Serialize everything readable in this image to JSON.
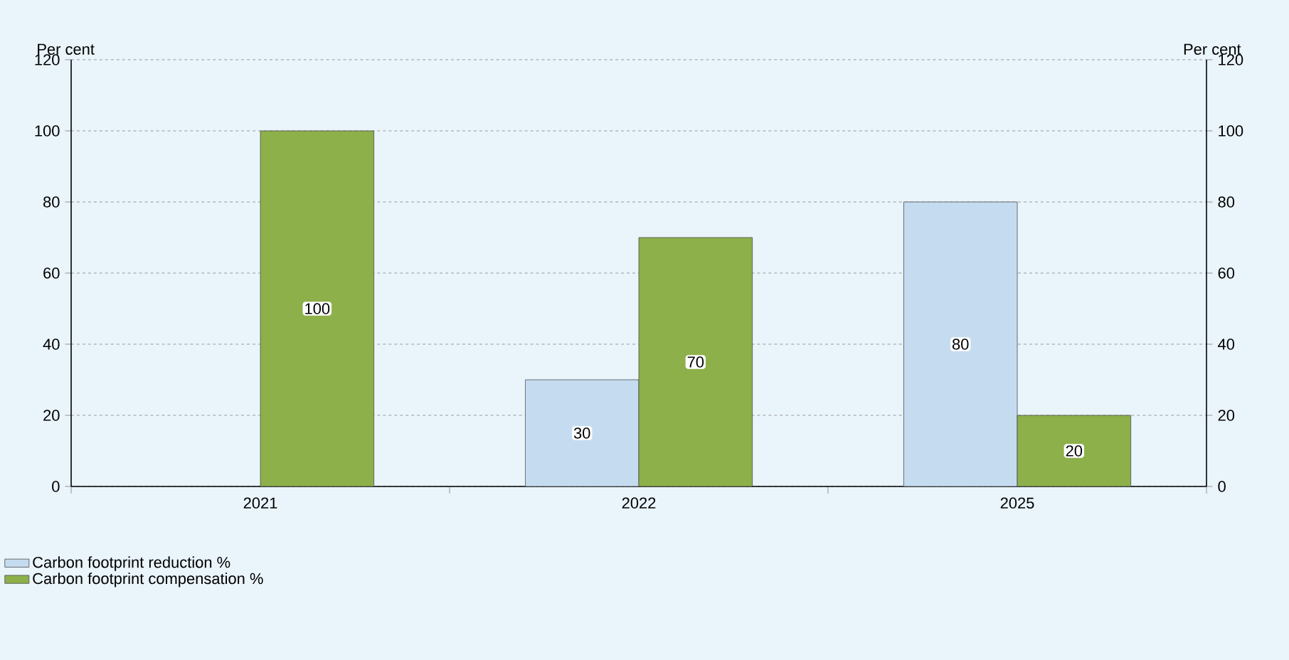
{
  "chart_data": {
    "type": "bar",
    "categories": [
      "2021",
      "2022",
      "2025"
    ],
    "series": [
      {
        "name": "Carbon footprint reduction %",
        "color": "#c5dcf0",
        "values": [
          null,
          30,
          80
        ]
      },
      {
        "name": "Carbon footprint compensation %",
        "color": "#8db04a",
        "values": [
          100,
          70,
          20
        ]
      }
    ],
    "ylabel": "Per cent",
    "y2label": "Per cent",
    "ylim": [
      0,
      120
    ],
    "yticks": [
      0,
      20,
      40,
      60,
      80,
      100,
      120
    ],
    "y2lim": [
      0,
      120
    ],
    "y2ticks": [
      0,
      20,
      40,
      60,
      80,
      100,
      120
    ],
    "grid": "y",
    "legend": "bottom left",
    "data_labels": true
  }
}
